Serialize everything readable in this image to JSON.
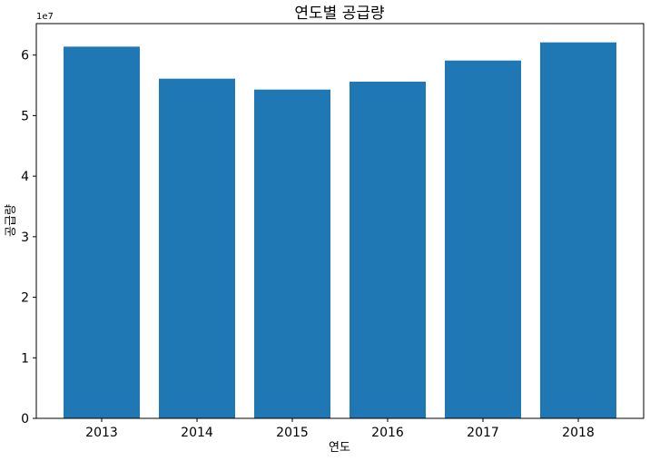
{
  "chart_data": {
    "type": "bar",
    "title": "연도별 공급량",
    "xlabel": "연도",
    "ylabel": "공급량",
    "y_offset_label": "1e7",
    "categories": [
      "2013",
      "2014",
      "2015",
      "2016",
      "2017",
      "2018"
    ],
    "values": [
      61400000,
      56100000,
      54300000,
      55600000,
      59100000,
      62100000
    ],
    "ylim": [
      0,
      65200000
    ],
    "yticks": [
      0,
      1,
      2,
      3,
      4,
      5,
      6
    ],
    "ytick_multiplier": 10000000,
    "bar_color": "#1f77b4",
    "grid": false,
    "legend": "none"
  }
}
